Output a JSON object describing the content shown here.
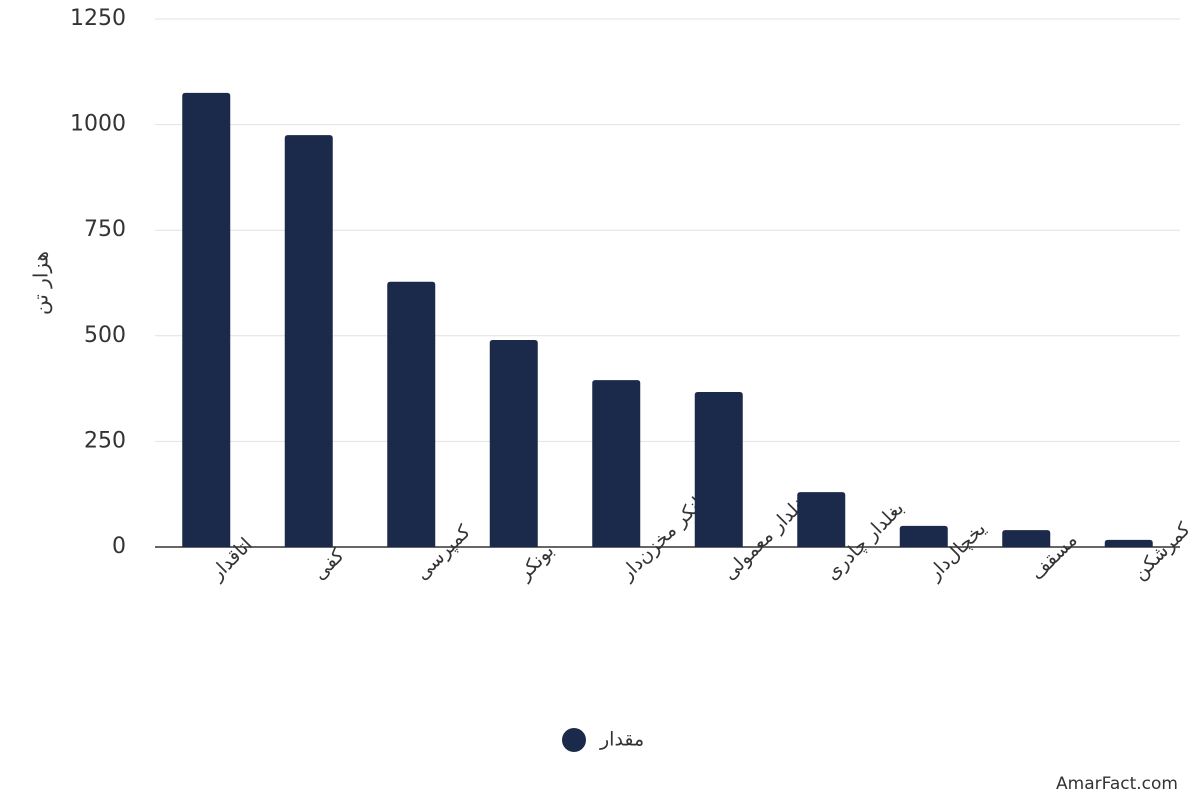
{
  "chart_data": {
    "type": "bar",
    "y_label": "هزار تن",
    "categories": [
      "اتاقدار",
      "کفی",
      "کمپرسی",
      "بونکر",
      "تانکر مخزن‌دار",
      "بغلدار معمولی",
      "بغلدار چادری",
      "یخچال‌دار",
      "مسقف",
      "کمرشکن"
    ],
    "series": [
      {
        "name": "مقدار",
        "color": "#1b2a4a",
        "values": [
          1075,
          975,
          628,
          490,
          395,
          367,
          130,
          50,
          40,
          17
        ]
      }
    ],
    "ylim": [
      0,
      1250
    ],
    "yticks": [
      0,
      250,
      500,
      750,
      1000,
      1250
    ],
    "grid": true,
    "legend": "bottom",
    "credit": "AmarFact.com"
  }
}
